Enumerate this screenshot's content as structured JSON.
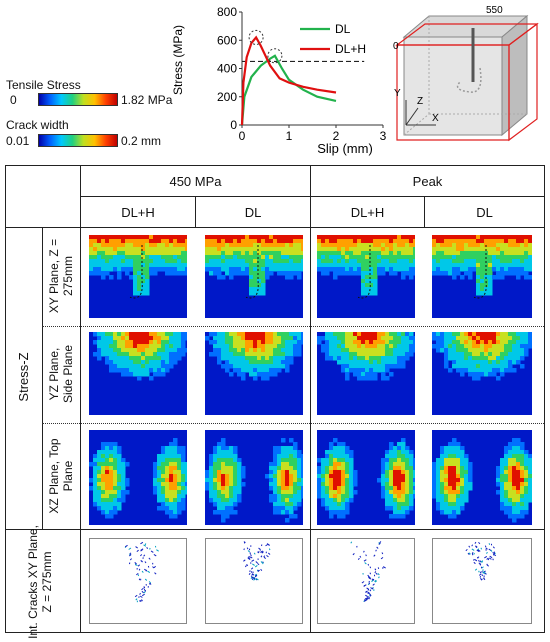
{
  "legend": {
    "stress_title": "Tensile Stress",
    "stress_min": "0",
    "stress_max": "1.82 MPa",
    "crack_title": "Crack width",
    "crack_min": "0.01",
    "crack_max": "0.2 mm"
  },
  "chart_data": {
    "type": "line",
    "xlabel": "Slip (mm)",
    "ylabel": "Stress (MPa)",
    "xlim": [
      0,
      3
    ],
    "ylim": [
      0,
      800
    ],
    "xticks": [
      "0",
      "1",
      "2",
      "3"
    ],
    "yticks": [
      "0",
      "200",
      "400",
      "600",
      "800"
    ],
    "reference_line_y": 450,
    "legend_position": "top-right",
    "series": [
      {
        "name": "DL",
        "color": "#22b24c",
        "x": [
          0,
          0.05,
          0.2,
          0.4,
          0.6,
          0.7,
          0.85,
          1.0,
          1.3,
          1.6,
          2.0
        ],
        "y": [
          0,
          200,
          340,
          420,
          470,
          490,
          400,
          320,
          250,
          200,
          170
        ]
      },
      {
        "name": "DL+H",
        "color": "#e01010",
        "x": [
          0,
          0.03,
          0.1,
          0.2,
          0.3,
          0.4,
          0.6,
          0.8,
          1.0,
          1.3,
          1.6,
          2.0
        ],
        "y": [
          0,
          300,
          480,
          580,
          620,
          560,
          420,
          330,
          300,
          270,
          250,
          230
        ]
      }
    ],
    "peaks_circled": [
      {
        "x": 0.3,
        "y": 620
      },
      {
        "x": 0.7,
        "y": 490
      }
    ]
  },
  "schematic": {
    "dim_label": "550",
    "zero_label": "0",
    "axis_y": "Y",
    "axis_z": "Z",
    "axis_x": "X"
  },
  "table": {
    "group_headers": [
      "450 MPa",
      "Peak"
    ],
    "col_headers": [
      "DL+H",
      "DL",
      "DL+H",
      "DL"
    ],
    "group_label": "Stress-Z",
    "row_labels": [
      "XY Plane, Z = 275mm",
      "YZ Plane, Side Plane",
      "XZ Plane, Top Plane",
      "Int. Cracks XY Plane, Z = 275mm"
    ]
  }
}
